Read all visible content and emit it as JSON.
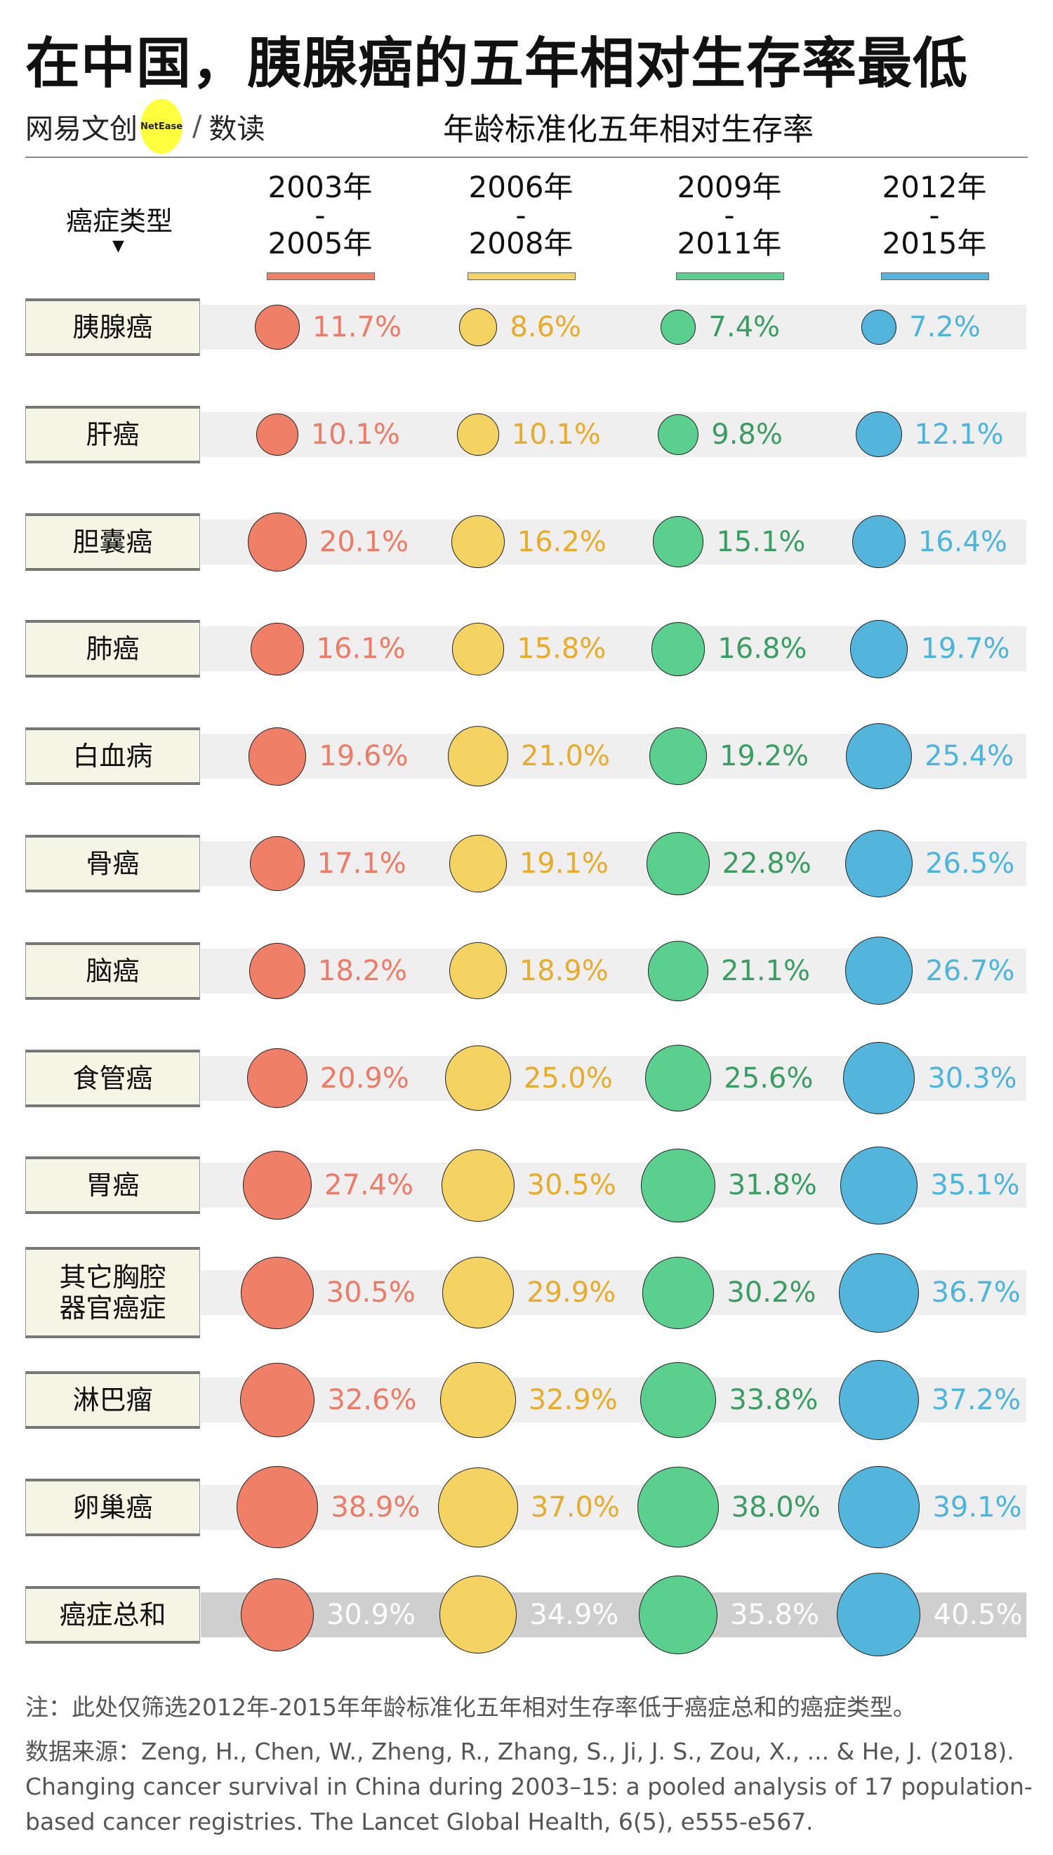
{
  "title": "在中国，胰腺癌的五年相对生存率最低",
  "logo": {
    "brand": "网易文创",
    "badge": "NetEase",
    "sub": "数读"
  },
  "subtitle": "年龄标准化五年相对生存率",
  "chart_data": {
    "type": "table",
    "row_header": "癌症类型",
    "row_header_marker": "▼",
    "columns": [
      {
        "start": "2003年",
        "sep": "-",
        "end": "2005年",
        "color": "#f07f68",
        "text_color": "#ee7b66"
      },
      {
        "start": "2006年",
        "sep": "-",
        "end": "2008年",
        "color": "#f5d363",
        "text_color": "#e8ac2a"
      },
      {
        "start": "2009年",
        "sep": "-",
        "end": "2011年",
        "color": "#5bd08e",
        "text_color": "#3a9e62"
      },
      {
        "start": "2012年",
        "sep": "-",
        "end": "2015年",
        "color": "#54b5dc",
        "text_color": "#4cb5de"
      }
    ],
    "unit": "%",
    "rows": [
      {
        "name": "胰腺癌",
        "values": [
          11.7,
          8.6,
          7.4,
          7.2
        ],
        "labels": [
          "11.7%",
          "8.6%",
          "7.4%",
          "7.2%"
        ]
      },
      {
        "name": "肝癌",
        "values": [
          10.1,
          10.1,
          9.8,
          12.1
        ],
        "labels": [
          "10.1%",
          "10.1%",
          "9.8%",
          "12.1%"
        ]
      },
      {
        "name": "胆囊癌",
        "values": [
          20.1,
          16.2,
          15.1,
          16.4
        ],
        "labels": [
          "20.1%",
          "16.2%",
          "15.1%",
          "16.4%"
        ]
      },
      {
        "name": "肺癌",
        "values": [
          16.1,
          15.8,
          16.8,
          19.7
        ],
        "labels": [
          "16.1%",
          "15.8%",
          "16.8%",
          "19.7%"
        ]
      },
      {
        "name": "白血病",
        "values": [
          19.6,
          21.0,
          19.2,
          25.4
        ],
        "labels": [
          "19.6%",
          "21.0%",
          "19.2%",
          "25.4%"
        ]
      },
      {
        "name": "骨癌",
        "values": [
          17.1,
          19.1,
          22.8,
          26.5
        ],
        "labels": [
          "17.1%",
          "19.1%",
          "22.8%",
          "26.5%"
        ]
      },
      {
        "name": "脑癌",
        "values": [
          18.2,
          18.9,
          21.1,
          26.7
        ],
        "labels": [
          "18.2%",
          "18.9%",
          "21.1%",
          "26.7%"
        ]
      },
      {
        "name": "食管癌",
        "values": [
          20.9,
          25.0,
          25.6,
          30.3
        ],
        "labels": [
          "20.9%",
          "25.0%",
          "25.6%",
          "30.3%"
        ]
      },
      {
        "name": "胃癌",
        "values": [
          27.4,
          30.5,
          31.8,
          35.1
        ],
        "labels": [
          "27.4%",
          "30.5%",
          "31.8%",
          "35.1%"
        ]
      },
      {
        "name": "其它胸腔器官癌症",
        "name_lines": [
          "其它胸腔",
          "器官癌症"
        ],
        "values": [
          30.5,
          29.9,
          30.2,
          36.7
        ],
        "labels": [
          "30.5%",
          "29.9%",
          "30.2%",
          "36.7%"
        ]
      },
      {
        "name": "淋巴瘤",
        "values": [
          32.6,
          32.9,
          33.8,
          37.2
        ],
        "labels": [
          "32.6%",
          "32.9%",
          "33.8%",
          "37.2%"
        ]
      },
      {
        "name": "卵巢癌",
        "values": [
          38.9,
          37.0,
          38.0,
          39.1
        ],
        "labels": [
          "38.9%",
          "37.0%",
          "38.0%",
          "39.1%"
        ]
      },
      {
        "name": "癌症总和",
        "values": [
          30.9,
          34.9,
          35.8,
          40.5
        ],
        "labels": [
          "30.9%",
          "34.9%",
          "35.8%",
          "40.5%"
        ],
        "total": true
      }
    ]
  },
  "note": "注：此处仅筛选2012年-2015年年龄标准化五年相对生存率低于癌症总和的癌症类型。",
  "source": "数据来源：Zeng, H., Chen, W., Zheng, R., Zhang, S., Ji, J. S., Zou, X., ... & He, J. (2018). Changing cancer survival in China during 2003–15: a pooled analysis of 17 population-based cancer registries. The Lancet Global Health, 6(5), e555-e567."
}
